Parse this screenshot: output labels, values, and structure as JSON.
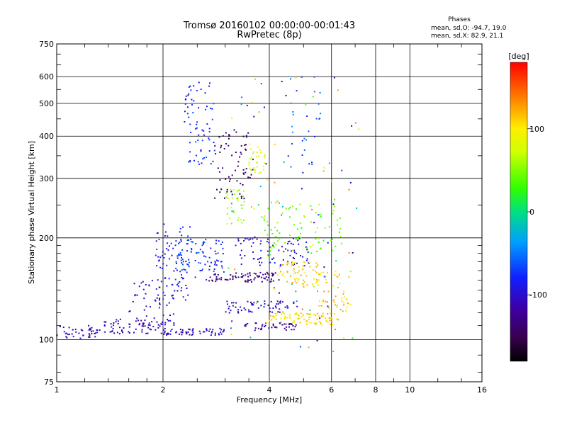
{
  "chart_data": {
    "type": "scatter",
    "title": "Tromsø 20160102 00:00:00-00:01:43",
    "subtitle": "RwPretec (8p)",
    "xlabel": "Frequency [MHz]",
    "ylabel": "Stationary phase Virtual Height [km]",
    "x_scale": "log",
    "y_scale": "log",
    "xlim": [
      1,
      16
    ],
    "ylim": [
      75,
      750
    ],
    "x_ticks": [
      "1",
      "2",
      "4",
      "6",
      "8",
      "10",
      "16"
    ],
    "x_tick_values": [
      1,
      2,
      4,
      6,
      8,
      10,
      16
    ],
    "y_ticks": [
      "75",
      "100",
      "200",
      "300",
      "400",
      "500",
      "600",
      "750"
    ],
    "y_tick_values": [
      75,
      100,
      200,
      300,
      400,
      500,
      600,
      750
    ],
    "grid": true,
    "phase_legend": {
      "title": "Phases",
      "line1": "mean, sd,O: -94.7, 19.0",
      "line2": "mean, sd,X:  82.9, 21.1"
    },
    "colorbar": {
      "label": "[deg]",
      "range": [
        -180,
        180
      ],
      "ticks": [
        "100",
        "0",
        "-100"
      ],
      "tick_values": [
        100,
        0,
        -100
      ]
    },
    "clusters": [
      {
        "x": [
          1.0,
          1.3
        ],
        "y": [
          100,
          110
        ],
        "phase": -110,
        "n": 40
      },
      {
        "x": [
          1.3,
          2.0
        ],
        "y": [
          104,
          115
        ],
        "phase": -110,
        "n": 70
      },
      {
        "x": [
          2.0,
          3.0
        ],
        "y": [
          103,
          108
        ],
        "phase": -105,
        "n": 60
      },
      {
        "x": [
          1.6,
          2.2
        ],
        "y": [
          110,
          150
        ],
        "phase": -110,
        "n": 50
      },
      {
        "x": [
          1.9,
          2.4
        ],
        "y": [
          130,
          220
        ],
        "phase": -85,
        "n": 90
      },
      {
        "x": [
          2.2,
          3.0
        ],
        "y": [
          150,
          200
        ],
        "phase": -75,
        "n": 80
      },
      {
        "x": [
          2.3,
          2.8
        ],
        "y": [
          330,
          580
        ],
        "phase": -80,
        "n": 70
      },
      {
        "x": [
          2.8,
          3.6
        ],
        "y": [
          260,
          420
        ],
        "phase": -140,
        "n": 70
      },
      {
        "x": [
          3.0,
          3.4
        ],
        "y": [
          220,
          280
        ],
        "phase": 60,
        "n": 35
      },
      {
        "x": [
          3.5,
          3.9
        ],
        "y": [
          310,
          380
        ],
        "phase": 80,
        "n": 30
      },
      {
        "x": [
          2.7,
          4.3
        ],
        "y": [
          148,
          158
        ],
        "phase": -130,
        "n": 80
      },
      {
        "x": [
          3.0,
          4.8
        ],
        "y": [
          120,
          130
        ],
        "phase": -105,
        "n": 60
      },
      {
        "x": [
          3.2,
          5.2
        ],
        "y": [
          165,
          200
        ],
        "phase": -95,
        "n": 80
      },
      {
        "x": [
          3.3,
          4.8
        ],
        "y": [
          106,
          112
        ],
        "phase": -120,
        "n": 45
      },
      {
        "x": [
          4.0,
          5.3
        ],
        "y": [
          112,
          120
        ],
        "phase": 100,
        "n": 45
      },
      {
        "x": [
          4.2,
          5.5
        ],
        "y": [
          145,
          170
        ],
        "phase": 110,
        "n": 60
      },
      {
        "x": [
          5.0,
          6.3
        ],
        "y": [
          110,
          120
        ],
        "phase": 110,
        "n": 40
      },
      {
        "x": [
          5.5,
          6.8
        ],
        "y": [
          120,
          160
        ],
        "phase": 110,
        "n": 50
      },
      {
        "x": [
          3.8,
          6.5
        ],
        "y": [
          180,
          260
        ],
        "phase": 40,
        "n": 80
      },
      {
        "x": [
          4.5,
          5.6
        ],
        "y": [
          330,
          600
        ],
        "phase": -60,
        "n": 25
      },
      {
        "x": [
          3.0,
          7.2
        ],
        "y": [
          90,
          600
        ],
        "phase": 0,
        "n": 110
      }
    ]
  }
}
